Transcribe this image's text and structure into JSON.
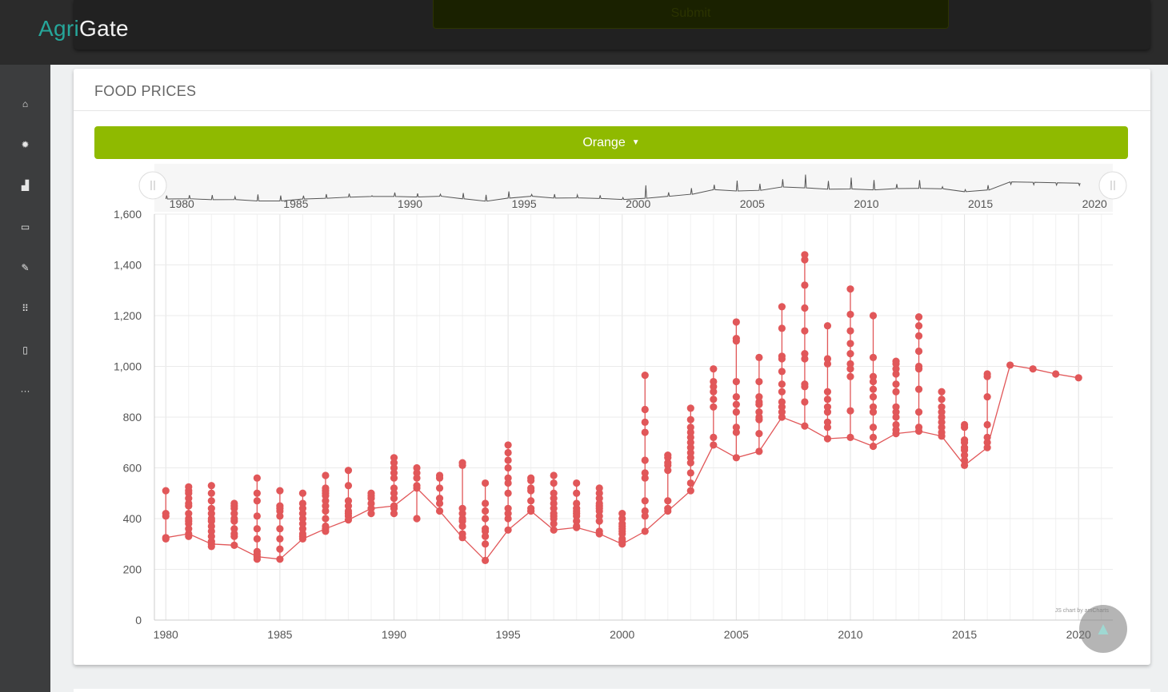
{
  "app": {
    "brand_part1": "Agri",
    "brand_part2": "Gate",
    "submit_label": "Submit"
  },
  "sidebar": {
    "items": [
      {
        "icon": "home-icon",
        "glyph": "⌂",
        "active": true
      },
      {
        "icon": "gear-icon",
        "glyph": "✹"
      },
      {
        "icon": "bar-chart-icon",
        "glyph": "▟"
      },
      {
        "icon": "monitor-icon",
        "glyph": "▭"
      },
      {
        "icon": "edit-icon",
        "glyph": "✎"
      },
      {
        "icon": "grid-icon",
        "glyph": "⠿"
      },
      {
        "icon": "file-icon",
        "glyph": "▯"
      },
      {
        "icon": "more-icon",
        "glyph": "···"
      }
    ]
  },
  "card": {
    "title": "FOOD PRICES",
    "dropdown_label": "Orange"
  },
  "colors": {
    "accent": "#26a69a",
    "dropdown": "#8fba00",
    "series": "#e15759"
  },
  "chart_data": {
    "type": "line",
    "title": "",
    "xlabel": "",
    "ylabel": "",
    "xlim": [
      1979.5,
      2021.5
    ],
    "ylim": [
      0,
      1600
    ],
    "yticks": [
      "0",
      "200",
      "400",
      "600",
      "800",
      "1,000",
      "1,200",
      "1,400",
      "1,600"
    ],
    "ytick_values": [
      0,
      200,
      400,
      600,
      800,
      1000,
      1200,
      1400,
      1600
    ],
    "xticks": [
      "1980",
      "1985",
      "1990",
      "1995",
      "2000",
      "2005",
      "2010",
      "2015",
      "2020"
    ],
    "xtick_values": [
      1980,
      1985,
      1990,
      1995,
      2000,
      2005,
      2010,
      2015,
      2020
    ],
    "grid": true,
    "credit": "JS chart by amCharts",
    "series": [
      {
        "values": [
          [
            1980,
            [
              325,
              320,
              410,
              420,
              510
            ]
          ],
          [
            1981,
            [
              340,
              330,
              360,
              380,
              390,
              400,
              420,
              450,
              460,
              480,
              500,
              510,
              525
            ]
          ],
          [
            1982,
            [
              300,
              290,
              310,
              330,
              350,
              370,
              390,
              400,
              420,
              440,
              470,
              500,
              530
            ]
          ],
          [
            1983,
            [
              295,
              330,
              340,
              360,
              390,
              400,
              420,
              440,
              450,
              460
            ]
          ],
          [
            1984,
            [
              250,
              240,
              260,
              270,
              320,
              360,
              410,
              470,
              500,
              560
            ]
          ],
          [
            1985,
            [
              240,
              280,
              320,
              360,
              410,
              430,
              440,
              450,
              510
            ]
          ],
          [
            1986,
            [
              320,
              330,
              340,
              360,
              380,
              400,
              420,
              440,
              460,
              500
            ]
          ],
          [
            1987,
            [
              360,
              350,
              370,
              400,
              430,
              450,
              470,
              490,
              500,
              510,
              520,
              570
            ]
          ],
          [
            1988,
            [
              395,
              410,
              420,
              430,
              450,
              470,
              530,
              590
            ]
          ],
          [
            1989,
            [
              440,
              420,
              460,
              480,
              490,
              500
            ]
          ],
          [
            1990,
            [
              450,
              420,
              440,
              480,
              500,
              520,
              560,
              580,
              600,
              620,
              640
            ]
          ],
          [
            1991,
            [
              520,
              400,
              530,
              560,
              580,
              600
            ]
          ],
          [
            1992,
            [
              430,
              460,
              480,
              520,
              560,
              570
            ]
          ],
          [
            1993,
            [
              325,
              340,
              370,
              390,
              400,
              420,
              440,
              610,
              620
            ]
          ],
          [
            1994,
            [
              235,
              300,
              330,
              350,
              360,
              400,
              430,
              460,
              540
            ]
          ],
          [
            1995,
            [
              355,
              400,
              420,
              440,
              500,
              540,
              560,
              600,
              630,
              660,
              690
            ]
          ],
          [
            1996,
            [
              430,
              430,
              440,
              470,
              510,
              520,
              550,
              560
            ]
          ],
          [
            1997,
            [
              355,
              380,
              400,
              410,
              420,
              440,
              460,
              480,
              500,
              540,
              570
            ]
          ],
          [
            1998,
            [
              365,
              370,
              390,
              410,
              420,
              430,
              440,
              460,
              500,
              540
            ]
          ],
          [
            1999,
            [
              340,
              350,
              390,
              410,
              430,
              440,
              450,
              460,
              480,
              500,
              520
            ]
          ],
          [
            2000,
            [
              300,
              310,
              320,
              340,
              350,
              360,
              370,
              380,
              400,
              420
            ]
          ],
          [
            2001,
            [
              350,
              410,
              430,
              470,
              560,
              580,
              630,
              740,
              780,
              830,
              965
            ]
          ],
          [
            2002,
            [
              430,
              440,
              470,
              590,
              610,
              620,
              640,
              650
            ]
          ],
          [
            2003,
            [
              510,
              540,
              580,
              620,
              640,
              660,
              680,
              700,
              720,
              740,
              760,
              790,
              835
            ]
          ],
          [
            2004,
            [
              690,
              720,
              840,
              870,
              900,
              920,
              940,
              990
            ]
          ],
          [
            2005,
            [
              640,
              740,
              760,
              820,
              850,
              880,
              940,
              1100,
              1110,
              1175
            ]
          ],
          [
            2006,
            [
              665,
              735,
              790,
              800,
              820,
              850,
              860,
              880,
              940,
              1035
            ]
          ],
          [
            2007,
            [
              800,
              820,
              840,
              860,
              900,
              930,
              980,
              1030,
              1040,
              1150,
              1235
            ]
          ],
          [
            2008,
            [
              765,
              860,
              920,
              930,
              1030,
              1050,
              1140,
              1230,
              1320,
              1420,
              1440
            ]
          ],
          [
            2009,
            [
              715,
              760,
              780,
              820,
              840,
              870,
              900,
              1010,
              1030,
              1160
            ]
          ],
          [
            2010,
            [
              720,
              825,
              960,
              990,
              1010,
              1050,
              1090,
              1140,
              1205,
              1305
            ]
          ],
          [
            2011,
            [
              685,
              720,
              760,
              820,
              840,
              880,
              910,
              940,
              960,
              1035,
              1200
            ]
          ],
          [
            2012,
            [
              735,
              750,
              770,
              800,
              820,
              840,
              900,
              930,
              970,
              990,
              1010,
              1020
            ]
          ],
          [
            2013,
            [
              745,
              760,
              820,
              910,
              990,
              1000,
              1060,
              1120,
              1160,
              1195
            ]
          ],
          [
            2014,
            [
              725,
              740,
              760,
              780,
              800,
              820,
              840,
              870,
              900
            ]
          ],
          [
            2015,
            [
              610,
              630,
              650,
              670,
              680,
              700,
              710,
              760,
              770
            ]
          ],
          [
            2016,
            [
              680,
              700,
              720,
              770,
              880,
              960,
              970
            ]
          ],
          [
            2017,
            [
              1005
            ]
          ],
          [
            2018,
            [
              990
            ]
          ],
          [
            2019,
            [
              970
            ]
          ],
          [
            2020,
            [
              955
            ]
          ]
        ]
      }
    ]
  }
}
